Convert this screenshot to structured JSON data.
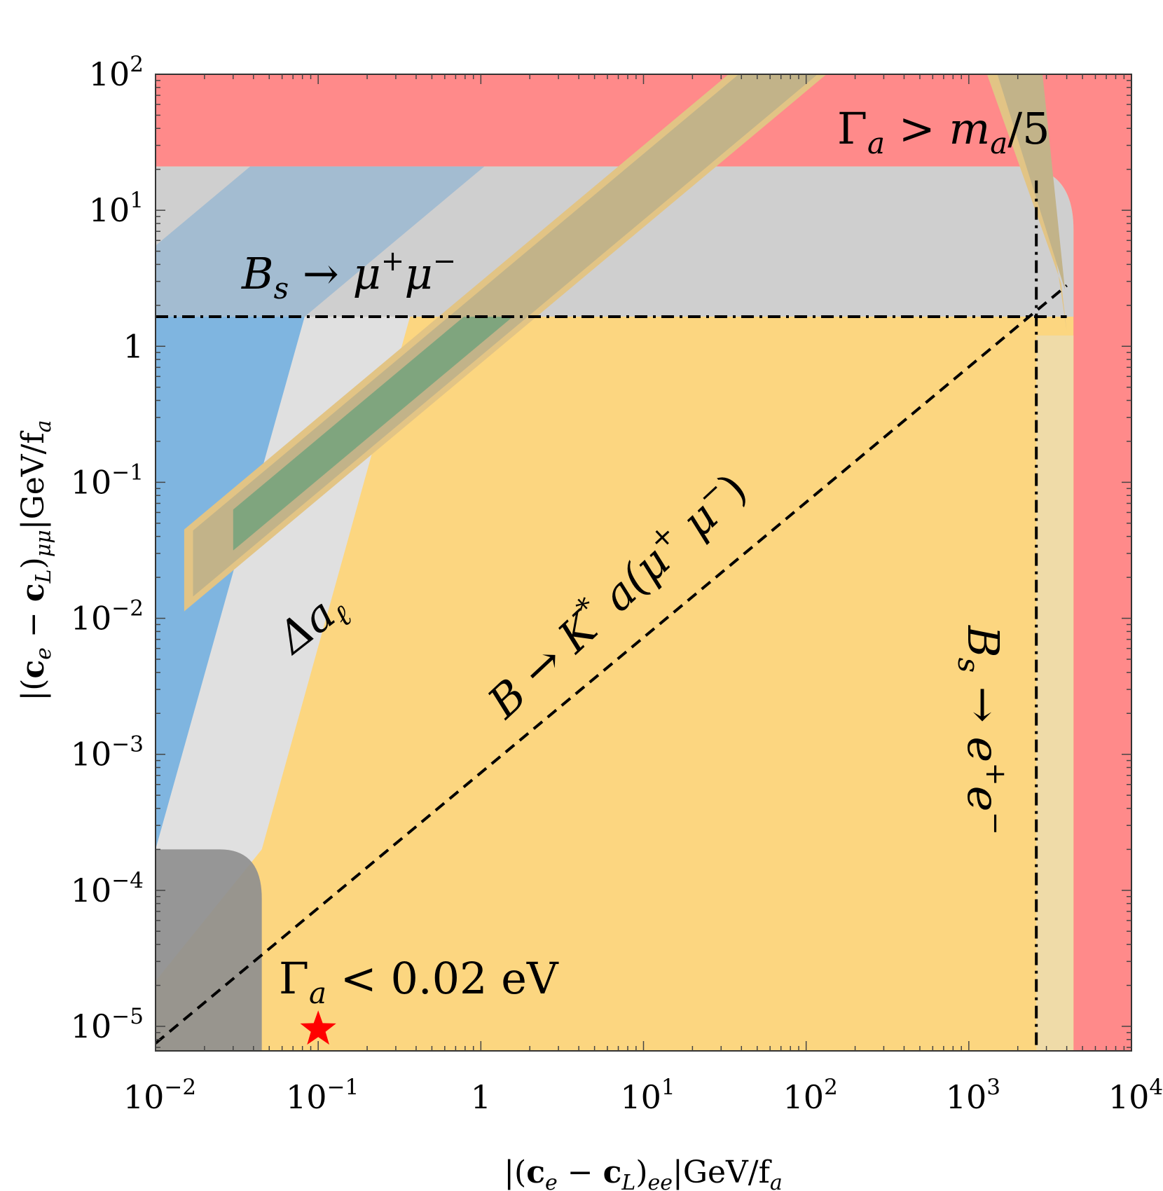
{
  "chart_data": {
    "type": "area",
    "x_scale": "log",
    "y_scale": "log",
    "xlim": [
      0.01,
      10000
    ],
    "ylim": [
      6.6e-06,
      100
    ],
    "grid": false,
    "xlabel": "|(c_e − c_L)_ee| GeV/f_a",
    "ylabel": "|(c_e − c_L)_μμ| GeV/f_a",
    "x_ticks": [
      {
        "value": 0.01,
        "base": "10",
        "exp": "−2"
      },
      {
        "value": 0.1,
        "base": "10",
        "exp": "−1"
      },
      {
        "value": 1,
        "base": "1",
        "exp": ""
      },
      {
        "value": 10,
        "base": "10",
        "exp": "1"
      },
      {
        "value": 100,
        "base": "10",
        "exp": "2"
      },
      {
        "value": 1000,
        "base": "10",
        "exp": "3"
      },
      {
        "value": 10000,
        "base": "10",
        "exp": "4"
      }
    ],
    "y_ticks": [
      {
        "value": 1e-05,
        "base": "10",
        "exp": "−5"
      },
      {
        "value": 0.0001,
        "base": "10",
        "exp": "−4"
      },
      {
        "value": 0.001,
        "base": "10",
        "exp": "−3"
      },
      {
        "value": 0.01,
        "base": "10",
        "exp": "−2"
      },
      {
        "value": 0.1,
        "base": "10",
        "exp": "−1"
      },
      {
        "value": 1,
        "base": "1",
        "exp": ""
      },
      {
        "value": 10,
        "base": "10",
        "exp": "1"
      },
      {
        "value": 100,
        "base": "10",
        "exp": "2"
      }
    ],
    "regions": [
      {
        "label": "Γ_a > m_a/5",
        "color": "#ff8a8a",
        "y_min": 21,
        "x_min": 4400
      },
      {
        "label": "Γ_a < 0.02 eV",
        "color": "#fcd680"
      },
      {
        "label": "B → K* a(μ+ μ−)",
        "color": "#7fa57e",
        "ratio_range": [
          0.85,
          2.4
        ]
      },
      {
        "label": "Δa_ℓ",
        "color": "#7fb5e0",
        "ratio_range": [
          20,
          550
        ],
        "y_max": 21
      },
      {
        "label": "B_s → μ+ μ−",
        "color": "#cfcfcf",
        "y_min": 1.65
      },
      {
        "label": "B_s → e+ e−",
        "color": "#efdba8",
        "x_min": 2600
      },
      {
        "label": "",
        "color": "#8f8f8f",
        "x_max": 0.045,
        "y_max": 0.0002
      }
    ],
    "lines": [
      {
        "style": "dashed",
        "from": [
          0.01,
          7.5e-06
        ],
        "to": [
          4000,
          2.8
        ]
      },
      {
        "style": "dashdot",
        "orientation": "horizontal",
        "y": 1.65
      },
      {
        "style": "dashdot",
        "orientation": "vertical",
        "x": 2600
      }
    ],
    "markers": [
      {
        "shape": "star",
        "color": "#ff0000",
        "x": 0.1,
        "y": 9.5e-06
      }
    ]
  },
  "labels": {
    "gamma_upper": {
      "main": "Γ",
      "sub": "a",
      "rest": " > m",
      "sub2": "a",
      "tail": "/5"
    },
    "bs_mumu": {
      "main": "B",
      "sub": "s",
      "rest": " → μ",
      "sup1": "+",
      "mid": "μ",
      "sup2": "−"
    },
    "delta_a": {
      "main": "Δa",
      "sub": "ℓ"
    },
    "bka": {
      "main": "B → K",
      "sup": "*",
      "rest": " a(μ",
      "sup1": "+",
      "mid": " μ",
      "sup2": "−",
      "tail": ")"
    },
    "bs_ee": {
      "main": "B",
      "sub": "s",
      "rest": " → e",
      "sup1": "+",
      "mid": "e",
      "sup2": "−"
    },
    "gamma_lower": {
      "main": "Γ",
      "sub": "a",
      "rest": " < 0.02 eV"
    }
  },
  "axis_titles": {
    "x": {
      "p1": "|(",
      "c1": "c",
      "s1": "e",
      "p2": " − ",
      "c2": "c",
      "s2": "L",
      "p3": ")",
      "s3": "ee",
      "p4": "|GeV/f",
      "s4": "a"
    },
    "y": {
      "p1": "|(",
      "c1": "c",
      "s1": "e",
      "p2": " − ",
      "c2": "c",
      "s2": "L",
      "p3": ")",
      "s3": "μμ",
      "p4": "|GeV/f",
      "s4": "a"
    }
  }
}
